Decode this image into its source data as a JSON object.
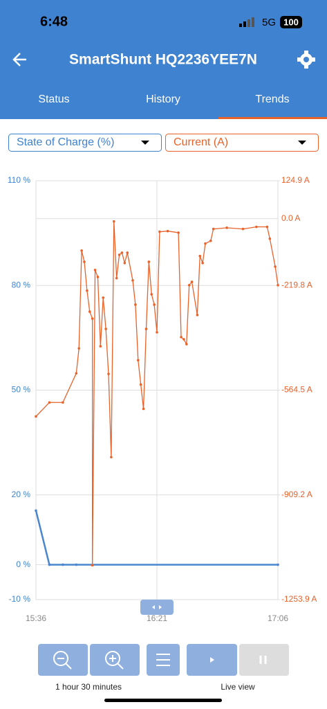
{
  "status_bar": {
    "time": "6:48",
    "network": "5G",
    "battery": "100"
  },
  "header": {
    "title": "SmartShunt HQ2236YEE7N"
  },
  "tabs": [
    "Status",
    "History",
    "Trends"
  ],
  "footer": {
    "range": "1 hour 30 minutes",
    "live": "Live view"
  },
  "chart_data": {
    "type": "line",
    "y_label": "State of Charge (%)",
    "y2_label": "Current (A)",
    "xlim": [
      "15:36",
      "17:06"
    ],
    "xticks": [
      "15:36",
      "16:21",
      "17:06"
    ],
    "ylim": [
      -10,
      110
    ],
    "yticks": [
      {
        "value": -10,
        "label": "-10 %"
      },
      {
        "value": 0,
        "label": "0 %"
      },
      {
        "value": 20,
        "label": "20 %"
      },
      {
        "value": 50,
        "label": "50 %"
      },
      {
        "value": 80,
        "label": "80 %"
      },
      {
        "value": 110,
        "label": "110 %"
      }
    ],
    "y2lim": [
      -1253.9,
      124.9
    ],
    "y2ticks": [
      {
        "value": -1253.9,
        "label": "-1253.9 A"
      },
      {
        "value": -909.2,
        "label": "-909.2 A"
      },
      {
        "value": -564.5,
        "label": "-564.5 A"
      },
      {
        "value": -219.8,
        "label": "-219.8 A"
      },
      {
        "value": 0,
        "label": "0.0 A"
      },
      {
        "value": 124.9,
        "label": "124.9 A"
      }
    ],
    "grid": true,
    "series": [
      {
        "name": "State of Charge (%)",
        "color": "#4a86cf",
        "x": [
          "15:36",
          "15:41",
          "15:46",
          "15:51",
          "17:06"
        ],
        "values": [
          15.5,
          0,
          0,
          0,
          0
        ]
      },
      {
        "name": "Current (A)",
        "color": "#e8622a",
        "axis": "y2",
        "x": [
          "15:36",
          "15:41",
          "15:46",
          "15:51",
          "15:52",
          "15:53",
          "15:54",
          "15:55",
          "15:56",
          "15:57",
          "15:57",
          "15:58",
          "15:59",
          "16:00",
          "16:01",
          "16:02",
          "16:03",
          "16:04",
          "16:05",
          "16:06",
          "16:07",
          "16:08",
          "16:09",
          "16:10",
          "16:12",
          "16:13",
          "16:14",
          "16:15",
          "16:16",
          "16:17",
          "16:18",
          "16:19",
          "16:20",
          "16:21",
          "16:22",
          "16:25",
          "16:29",
          "16:30",
          "16:31",
          "16:32",
          "16:33",
          "16:34",
          "16:36",
          "16:37",
          "16:38",
          "16:39",
          "16:41",
          "16:42",
          "16:47",
          "16:53",
          "16:58",
          "17:02",
          "17:03",
          "17:05",
          "17:06"
        ],
        "values": [
          -651,
          -605,
          -605,
          -509,
          -427,
          -105,
          -142,
          -237,
          -306,
          -329,
          -1141,
          -169,
          -192,
          -420,
          -260,
          -363,
          -511,
          -785,
          -9,
          -196,
          -119,
          -112,
          -146,
          -112,
          -203,
          -283,
          -466,
          -546,
          -626,
          -363,
          -142,
          -249,
          -283,
          -374,
          -43,
          -41,
          -46,
          -390,
          -397,
          -413,
          -219,
          -208,
          -317,
          -123,
          -146,
          -82,
          -73,
          -34,
          -30,
          -34,
          -27,
          -27,
          -66,
          -158,
          -219
        ]
      }
    ]
  }
}
